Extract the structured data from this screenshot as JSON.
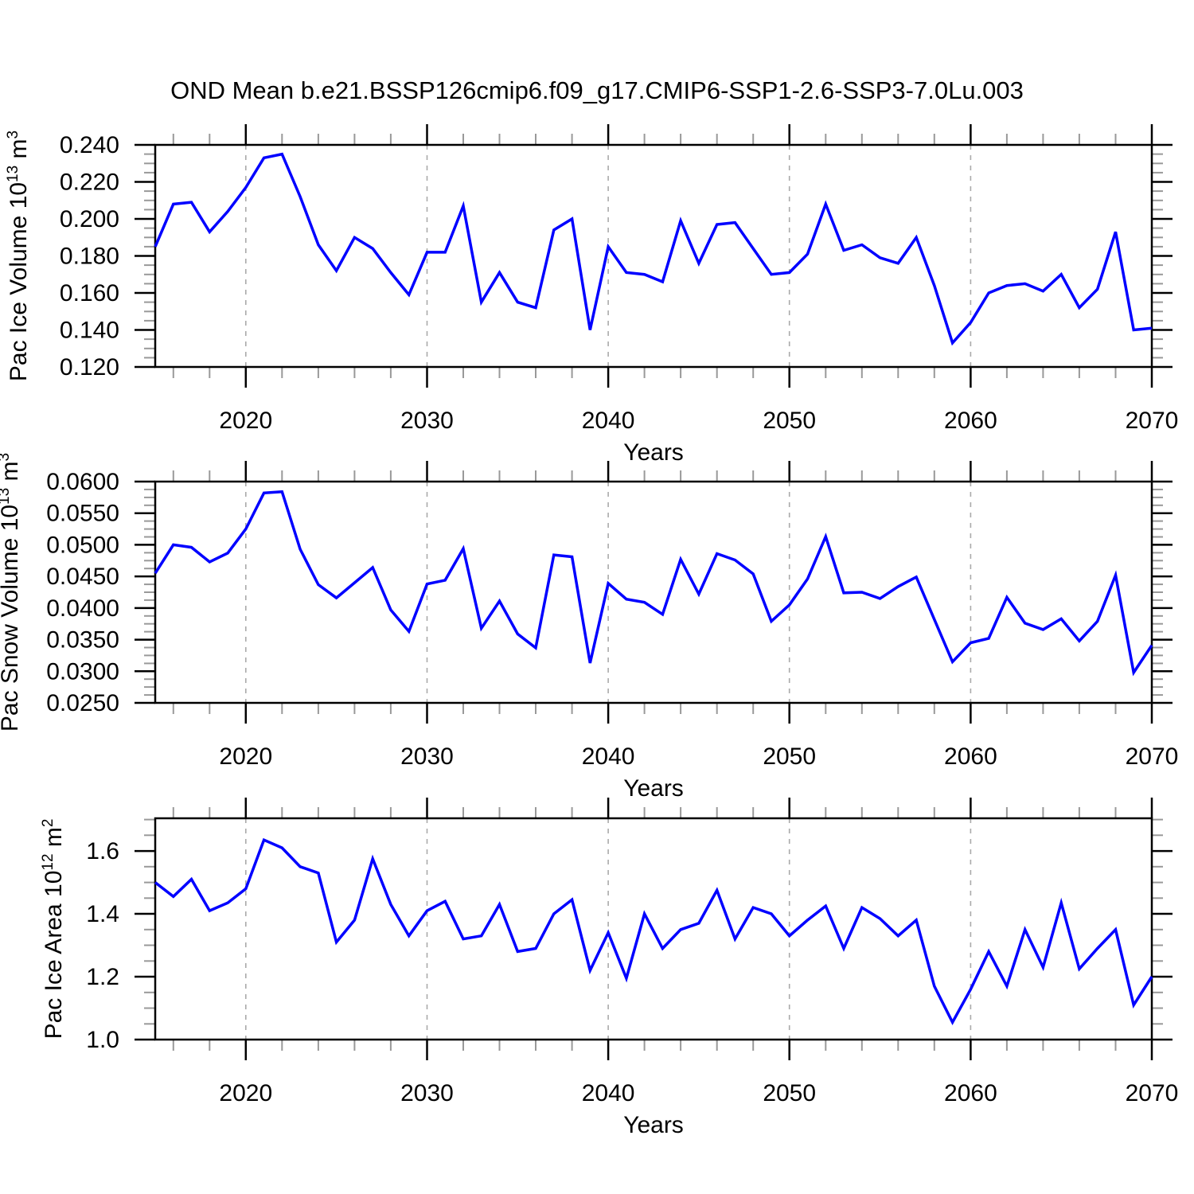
{
  "title": "OND Mean b.e21.BSSP126cmip6.f09_g17.CMIP6-SSP1-2.6-SSP3-7.0Lu.003",
  "colors": {
    "line": "#0000ff",
    "grid": "#aaaaaa",
    "axis": "#000000",
    "minor_tick": "#999999"
  },
  "chart_data": [
    {
      "type": "line",
      "title": "",
      "ylabel": "Pac Ice Volume 10^13 m^3",
      "ylabel_segments": [
        [
          "Pac Ice Volume 10",
          0
        ],
        [
          "13",
          1
        ],
        [
          " m",
          0
        ],
        [
          "3",
          1
        ]
      ],
      "xlabel": "Years",
      "xlim": [
        2015,
        2070
      ],
      "ylim": [
        0.12,
        0.24
      ],
      "y_minor_step": 0.005,
      "x_minor_step": 2,
      "grid_years": [
        2020,
        2030,
        2040,
        2050,
        2060
      ],
      "x_tick_labels": [
        "2020",
        "2030",
        "2040",
        "2050",
        "2060",
        "2070"
      ],
      "y_tick_labels": [
        "0.240",
        "0.220",
        "0.200",
        "0.180",
        "0.160",
        "0.140",
        "0.120"
      ],
      "x": [
        2015,
        2016,
        2017,
        2018,
        2019,
        2020,
        2021,
        2022,
        2023,
        2024,
        2025,
        2026,
        2027,
        2028,
        2029,
        2030,
        2031,
        2032,
        2033,
        2034,
        2035,
        2036,
        2037,
        2038,
        2039,
        2040,
        2041,
        2042,
        2043,
        2044,
        2045,
        2046,
        2047,
        2048,
        2049,
        2050,
        2051,
        2052,
        2053,
        2054,
        2055,
        2056,
        2057,
        2058,
        2059,
        2060,
        2061,
        2062,
        2063,
        2064,
        2065,
        2066,
        2067,
        2068,
        2069,
        2070
      ],
      "values": [
        0.185,
        0.208,
        0.209,
        0.193,
        0.204,
        0.217,
        0.233,
        0.235,
        0.212,
        0.186,
        0.172,
        0.19,
        0.184,
        0.171,
        0.159,
        0.182,
        0.182,
        0.207,
        0.155,
        0.171,
        0.155,
        0.152,
        0.194,
        0.2,
        0.14,
        0.185,
        0.171,
        0.17,
        0.166,
        0.199,
        0.176,
        0.197,
        0.198,
        0.184,
        0.17,
        0.171,
        0.181,
        0.208,
        0.183,
        0.186,
        0.179,
        0.176,
        0.19,
        0.164,
        0.133,
        0.144,
        0.16,
        0.164,
        0.165,
        0.161,
        0.17,
        0.152,
        0.162,
        0.193,
        0.14,
        0.141
      ]
    },
    {
      "type": "line",
      "title": "",
      "ylabel": "Pac Snow Volume 10^13 m^3",
      "ylabel_segments": [
        [
          "Pac Snow Volume 10",
          0
        ],
        [
          "13",
          1
        ],
        [
          " m",
          0
        ],
        [
          "3",
          1
        ]
      ],
      "xlabel": "Years",
      "xlim": [
        2015,
        2070
      ],
      "ylim": [
        0.025,
        0.06
      ],
      "y_minor_step": 0.00125,
      "x_minor_step": 2,
      "grid_years": [
        2020,
        2030,
        2040,
        2050,
        2060
      ],
      "x_tick_labels": [
        "2020",
        "2030",
        "2040",
        "2050",
        "2060",
        "2070"
      ],
      "y_tick_labels": [
        "0.0600",
        "0.0550",
        "0.0500",
        "0.0450",
        "0.0400",
        "0.0350",
        "0.0300",
        "0.0250"
      ],
      "x": [
        2015,
        2016,
        2017,
        2018,
        2019,
        2020,
        2021,
        2022,
        2023,
        2024,
        2025,
        2026,
        2027,
        2028,
        2029,
        2030,
        2031,
        2032,
        2033,
        2034,
        2035,
        2036,
        2037,
        2038,
        2039,
        2040,
        2041,
        2042,
        2043,
        2044,
        2045,
        2046,
        2047,
        2048,
        2049,
        2050,
        2051,
        2052,
        2053,
        2054,
        2055,
        2056,
        2057,
        2058,
        2059,
        2060,
        2061,
        2062,
        2063,
        2064,
        2065,
        2066,
        2067,
        2068,
        2069,
        2070
      ],
      "values": [
        0.0455,
        0.05,
        0.0496,
        0.0473,
        0.0487,
        0.0525,
        0.0582,
        0.0584,
        0.0493,
        0.0437,
        0.0416,
        0.044,
        0.0464,
        0.0397,
        0.0363,
        0.0438,
        0.0444,
        0.0494,
        0.0368,
        0.0411,
        0.0359,
        0.0337,
        0.0484,
        0.0481,
        0.0313,
        0.0439,
        0.0414,
        0.0409,
        0.039,
        0.0477,
        0.0422,
        0.0486,
        0.0476,
        0.0454,
        0.0379,
        0.0405,
        0.0446,
        0.0513,
        0.0424,
        0.0425,
        0.0415,
        0.0434,
        0.0449,
        0.0382,
        0.0315,
        0.0345,
        0.0352,
        0.0417,
        0.0376,
        0.0366,
        0.0383,
        0.0348,
        0.0379,
        0.0452,
        0.0298,
        0.0341
      ]
    },
    {
      "type": "line",
      "title": "",
      "ylabel": "Pac Ice Area 10^12 m^2",
      "ylabel_segments": [
        [
          "Pac Ice Area 10",
          0
        ],
        [
          "12",
          1
        ],
        [
          " m",
          0
        ],
        [
          "2",
          1
        ]
      ],
      "xlabel": "Years",
      "xlim": [
        2015,
        2070
      ],
      "ylim": [
        1.0,
        1.704
      ],
      "y_minor_step": 0.05,
      "x_minor_step": 2,
      "grid_years": [
        2020,
        2030,
        2040,
        2050,
        2060
      ],
      "x_tick_labels": [
        "2020",
        "2030",
        "2040",
        "2050",
        "2060",
        "2070"
      ],
      "y_tick_labels": [
        "1.6",
        "1.4",
        "1.2",
        "1.0"
      ],
      "x": [
        2015,
        2016,
        2017,
        2018,
        2019,
        2020,
        2021,
        2022,
        2023,
        2024,
        2025,
        2026,
        2027,
        2028,
        2029,
        2030,
        2031,
        2032,
        2033,
        2034,
        2035,
        2036,
        2037,
        2038,
        2039,
        2040,
        2041,
        2042,
        2043,
        2044,
        2045,
        2046,
        2047,
        2048,
        2049,
        2050,
        2051,
        2052,
        2053,
        2054,
        2055,
        2056,
        2057,
        2058,
        2059,
        2060,
        2061,
        2062,
        2063,
        2064,
        2065,
        2066,
        2067,
        2068,
        2069,
        2070
      ],
      "values": [
        1.5,
        1.455,
        1.51,
        1.41,
        1.435,
        1.48,
        1.635,
        1.61,
        1.55,
        1.53,
        1.31,
        1.38,
        1.575,
        1.43,
        1.33,
        1.41,
        1.44,
        1.32,
        1.33,
        1.43,
        1.28,
        1.29,
        1.4,
        1.445,
        1.22,
        1.34,
        1.195,
        1.4,
        1.29,
        1.35,
        1.37,
        1.475,
        1.32,
        1.42,
        1.4,
        1.33,
        1.38,
        1.425,
        1.29,
        1.42,
        1.385,
        1.33,
        1.38,
        1.17,
        1.055,
        1.16,
        1.28,
        1.17,
        1.35,
        1.23,
        1.435,
        1.225,
        1.29,
        1.35,
        1.11,
        1.2
      ]
    }
  ]
}
